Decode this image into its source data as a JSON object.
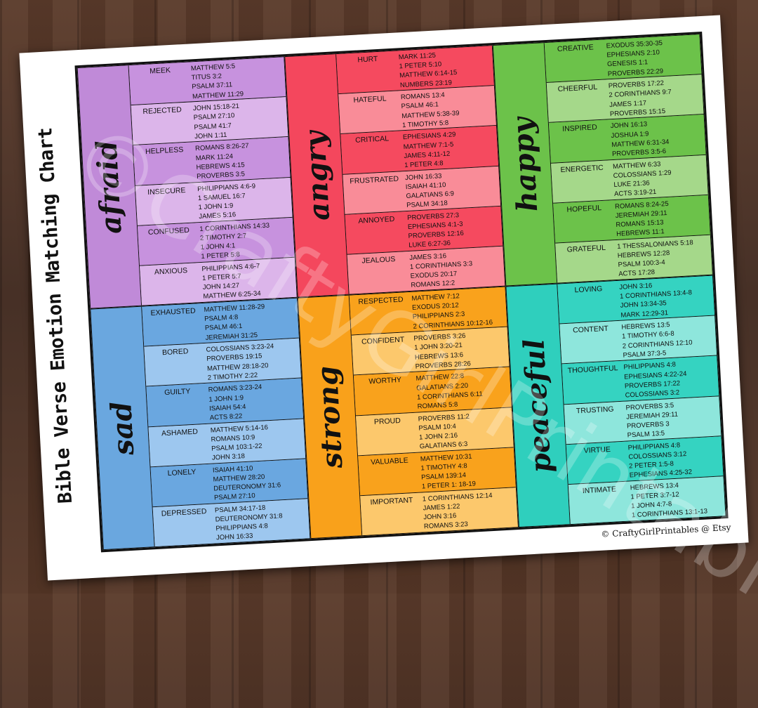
{
  "title": "Bible Verse Emotion Matching Chart",
  "credit": "© CraftyGirlPrintables @ Etsy",
  "watermark": "©CraftyGirlPrintables",
  "groups": [
    {
      "label": "afraid",
      "colors": {
        "main": "#c08ad8",
        "dark": "#c792de",
        "light": "#dcb5ea"
      },
      "emotions": [
        {
          "name": "MEEK",
          "verses": [
            "MATTHEW 5:5",
            "TITUS 3:2",
            "PSALM 37:11",
            "MATTHEW 11:29"
          ]
        },
        {
          "name": "REJECTED",
          "verses": [
            "JOHN 15:18-21",
            "PSALM 27:10",
            "PSALM 41:7",
            "JOHN 1:11"
          ]
        },
        {
          "name": "HELPLESS",
          "verses": [
            "ROMANS 8:26-27",
            "MARK 11:24",
            "HEBREWS 4:15",
            "PROVERBS 3:5"
          ]
        },
        {
          "name": "INSECURE",
          "verses": [
            "PHILIPPIANS 4:6-9",
            "1 SAMUEL 16:7",
            "1 JOHN 1:9",
            "JAMES 5:16"
          ]
        },
        {
          "name": "CONFUSED",
          "verses": [
            "1 CORINTHIANS 14:33",
            "2 TIMOTHY 2:7",
            "1 JOHN 4:1",
            "1 PETER 5:8"
          ]
        },
        {
          "name": "ANXIOUS",
          "verses": [
            "PHILIPPIANS 4:6-7",
            "1 PETER 5:7",
            "JOHN 14:27",
            "MATTHEW 6:25-34"
          ]
        }
      ]
    },
    {
      "label": "angry",
      "colors": {
        "main": "#f4475d",
        "dark": "#f54a5f",
        "light": "#f98c98"
      },
      "emotions": [
        {
          "name": "HURT",
          "verses": [
            "MARK 11:25",
            "1 PETER 5:10",
            "MATTHEW 6:14-15",
            "NUMBERS 23:19"
          ]
        },
        {
          "name": "HATEFUL",
          "verses": [
            "ROMANS 13:4",
            "PSALM 46:1",
            "MATTHEW 5:38-39",
            "1 TIMOTHY 5:8"
          ]
        },
        {
          "name": "CRITICAL",
          "verses": [
            "EPHESIANS 4:29",
            "MATTHEW 7:1-5",
            "JAMES 4:11-12",
            "1 PETER 4:8"
          ]
        },
        {
          "name": "FRUSTRATED",
          "verses": [
            "JOHN 16:33",
            "ISAIAH 41:10",
            "GALATIANS 6:9",
            "PSALM 34:18"
          ]
        },
        {
          "name": "ANNOYED",
          "verses": [
            "PROVERBS 27:3",
            "EPHESIANS 4:1-3",
            "PROVERBS 12:16",
            "LUKE 6:27-36"
          ]
        },
        {
          "name": "JEALOUS",
          "verses": [
            "JAMES 3:16",
            "1 CORINTHIANS 3:3",
            "EXODUS 20:17",
            "ROMANS 12:2"
          ]
        }
      ]
    },
    {
      "label": "happy",
      "colors": {
        "main": "#6cc24a",
        "dark": "#6cc24a",
        "light": "#a5d88a"
      },
      "emotions": [
        {
          "name": "CREATIVE",
          "verses": [
            "EXODUS 35:30-35",
            "EPHESIANS 2:10",
            "GENESIS 1:1",
            "PROVERBS 22:29"
          ]
        },
        {
          "name": "CHEERFUL",
          "verses": [
            "PROVERBS 17:22",
            "2 CORINTHIANS 9:7",
            "JAMES 1:17",
            "PROVERBS 15:15"
          ]
        },
        {
          "name": "INSPIRED",
          "verses": [
            "JOHN 16:13",
            "JOSHUA 1:9",
            "MATTHEW 6:31-34",
            "PROVERBS 3:5-6"
          ]
        },
        {
          "name": "ENERGETIC",
          "verses": [
            "MATTHEW 6:33",
            "COLOSSIANS 1:29",
            "LUKE 21:36",
            "ACTS 3:19-21"
          ]
        },
        {
          "name": "HOPEFUL",
          "verses": [
            "ROMANS 8:24-25",
            "JEREMIAH 29:11",
            "ROMANS 15:13",
            "HEBREWS 11:1"
          ]
        },
        {
          "name": "GRATEFUL",
          "verses": [
            "1 THESSALONIANS 5:18",
            "HEBREWS 12:28",
            "PSALM 100:3-4",
            "ACTS 17:28"
          ]
        }
      ]
    },
    {
      "label": "sad",
      "colors": {
        "main": "#6aa7df",
        "dark": "#6aa7e0",
        "light": "#9dc7ef"
      },
      "emotions": [
        {
          "name": "EXHAUSTED",
          "verses": [
            "MATTHEW 11:28-29",
            "PSALM 4:8",
            "PSALM 46:1",
            "JEREMIAH 31:25"
          ]
        },
        {
          "name": "BORED",
          "verses": [
            "COLOSSIANS 3:23-24",
            "PROVERBS 19:15",
            "MATTHEW 28:18-20",
            "2 TIMOTHY 2:22"
          ]
        },
        {
          "name": "GUILTY",
          "verses": [
            "ROMANS 3:23-24",
            "1 JOHN 1:9",
            "ISAIAH 54:4",
            "ACTS 8:22"
          ]
        },
        {
          "name": "ASHAMED",
          "verses": [
            "MATTHEW 5:14-16",
            "ROMANS 10:9",
            "PSALM 103:1-22",
            "JOHN 3:18"
          ]
        },
        {
          "name": "LONELY",
          "verses": [
            "ISAIAH 41:10",
            "MATTHEW 28:20",
            "DEUTERONOMY 31:6",
            "PSALM 27:10"
          ]
        },
        {
          "name": "DEPRESSED",
          "verses": [
            "PSALM 34:17-18",
            "DEUTERONOMY 31:8",
            "PHILIPPIANS 4:8",
            "JOHN 16:33"
          ]
        }
      ]
    },
    {
      "label": "strong",
      "colors": {
        "main": "#f9a11b",
        "dark": "#f9a21c",
        "light": "#fcc86c"
      },
      "emotions": [
        {
          "name": "RESPECTED",
          "verses": [
            "MATTHEW 7:12",
            "EXODUS 20:12",
            "PHILIPPIANS 2:3",
            "2 CORINTHIANS 10:12-16"
          ]
        },
        {
          "name": "CONFIDENT",
          "verses": [
            "PROVERBS 3:26",
            "1 JOHN 3:20-21",
            "HEBREWS 13:6",
            "PROVERBS 28:26"
          ]
        },
        {
          "name": "WORTHY",
          "verses": [
            "MATTHEW 22:8",
            "GALATIANS 2:20",
            "1 CORINTHIANS 6:11",
            "ROMANS 5:8"
          ]
        },
        {
          "name": "PROUD",
          "verses": [
            "PROVERBS 11:2",
            "PSALM 10:4",
            "1 JOHN 2:16",
            "GALATIANS 6:3"
          ]
        },
        {
          "name": "VALUABLE",
          "verses": [
            "MATTHEW 10:31",
            "1 TIMOTHY 4:8",
            "PSALM 139:14",
            "1 PETER 1: 18-19"
          ]
        },
        {
          "name": "IMPORTANT",
          "verses": [
            "1 CORINTHIANS 12:14",
            "JAMES 1:22",
            "JOHN 3:16",
            "ROMANS 3:23"
          ]
        }
      ]
    },
    {
      "label": "peaceful",
      "colors": {
        "main": "#2fcfbd",
        "dark": "#35d3c1",
        "light": "#8ee6dc"
      },
      "emotions": [
        {
          "name": "LOVING",
          "verses": [
            "JOHN 3:16",
            "1 CORINTHIANS 13:4-8",
            "JOHN 13:34-35",
            "MARK 12:29-31"
          ]
        },
        {
          "name": "CONTENT",
          "verses": [
            "HEBREWS 13:5",
            "1 TIMOTHY 6:6-8",
            "2 CORINTHIANS 12:10",
            "PSALM 37:3-5"
          ]
        },
        {
          "name": "THOUGHTFUL",
          "verses": [
            "PHILIPPIANS 4:8",
            "EPHESIANS 4:22-24",
            "PROVERBS 17:22",
            "COLOSSIANS 3:2"
          ]
        },
        {
          "name": "TRUSTING",
          "verses": [
            "PROVERBS 3:5",
            "JEREMIAH 29:11",
            "PROVERBS 3",
            "PSALM 13:5"
          ]
        },
        {
          "name": "VIRTUE",
          "verses": [
            "PHILIPPIANS 4:8",
            "COLOSSIANS 3:12",
            "2 PETER 1:5-8",
            "EPHESIANS 4:25-32"
          ]
        },
        {
          "name": "INTIMATE",
          "verses": [
            "HEBREWS 13:4",
            "1 PETER 3:7-12",
            "1 JOHN 4:7-8",
            "1 CORINTHIANS 13:1-13"
          ]
        }
      ]
    }
  ]
}
